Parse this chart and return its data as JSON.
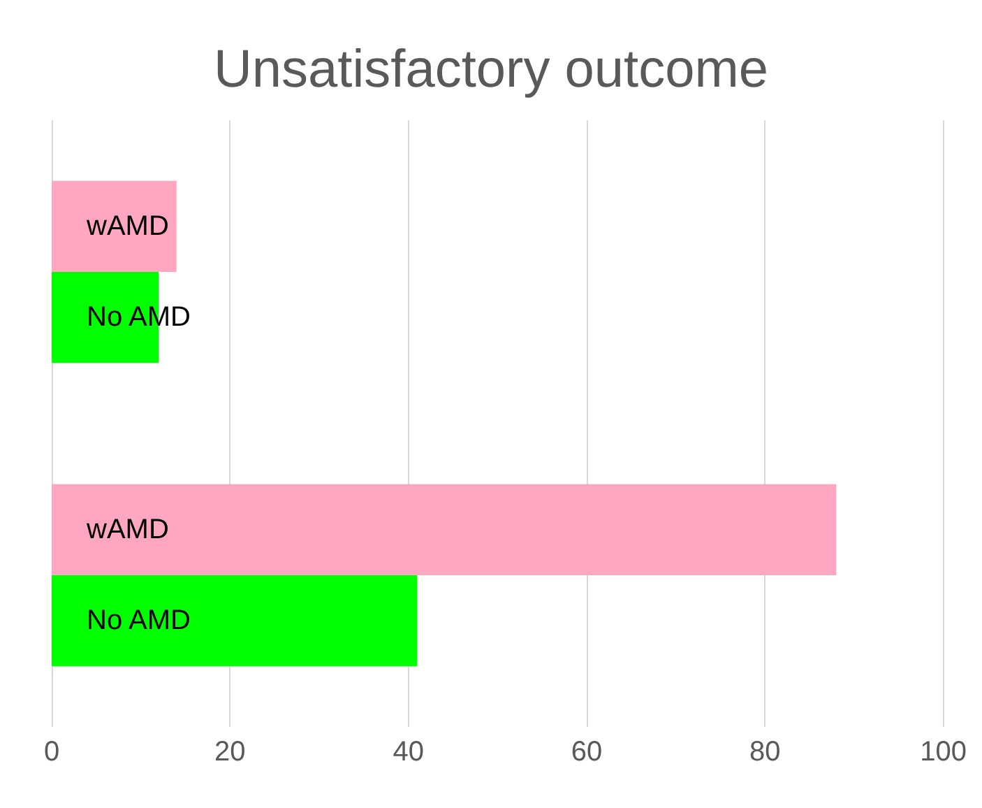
{
  "chart_data": {
    "type": "bar",
    "orientation": "horizontal",
    "title": "Unsatisfactory outcome",
    "categories": [
      null,
      null
    ],
    "series": [
      {
        "name": "wAMD",
        "color": "#ffa6c0",
        "values": [
          14,
          88
        ]
      },
      {
        "name": "No AMD",
        "color": "#00ff00",
        "values": [
          12,
          41
        ]
      }
    ],
    "xlim": [
      0,
      100
    ],
    "xticks": [
      0,
      20,
      40,
      60,
      80,
      100
    ],
    "grid": "x",
    "legend": false
  }
}
